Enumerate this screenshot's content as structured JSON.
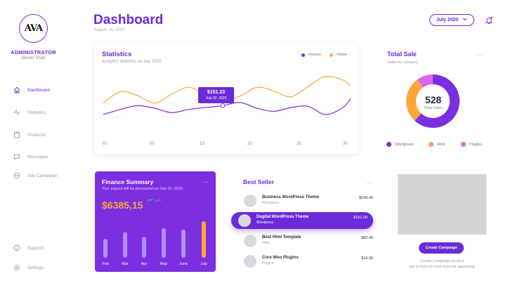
{
  "sidebar": {
    "logo": "AVA",
    "role": "ADMINISTRATOR",
    "shop": "Master Shop",
    "items": [
      {
        "label": "Dashboard",
        "icon": "home-icon",
        "active": true
      },
      {
        "label": "Statistics",
        "icon": "pulse-icon",
        "active": false
      },
      {
        "label": "Products",
        "icon": "box-icon",
        "active": false
      },
      {
        "label": "Messages",
        "icon": "chat-icon",
        "active": false
      },
      {
        "label": "Ads Campaign",
        "icon": "megaphone-icon",
        "active": false
      }
    ],
    "bottom_items": [
      {
        "label": "Support",
        "icon": "info-icon"
      },
      {
        "label": "Settings",
        "icon": "gear-icon"
      }
    ]
  },
  "header": {
    "title": "Dashboard",
    "date": "August 15, 2020",
    "month_selector": "July 2020"
  },
  "statistics": {
    "title": "Statistics",
    "subtitle": "Analytics statistics on July 2020",
    "legend": [
      {
        "label": "Income",
        "color": "#7b2fe0"
      },
      {
        "label": "Views",
        "color": "#ffa53a"
      }
    ],
    "tooltip": {
      "value": "$151.23",
      "date": "July 02, 2020"
    }
  },
  "total_sale": {
    "title": "Total Sale",
    "subtitle": "Sales by category",
    "more": "...",
    "total": "528",
    "total_label": "Total Sales",
    "chart_data": {
      "type": "pie",
      "title": "Total Sale",
      "subtitle": "Sales by category",
      "categories": [
        "Wordpress",
        "Html",
        "Plugins"
      ],
      "values": [
        62,
        28,
        10
      ],
      "colors": [
        "#7b2fe0",
        "#ffa53a",
        "#d768ef"
      ]
    }
  },
  "finance": {
    "title": "Finance Summary",
    "subtitle": "Your payout will be processed on July 15, 2020",
    "amount": "$6385,15",
    "change": "10%",
    "more": "...",
    "chart_data": {
      "type": "bar",
      "categories": [
        "Feb",
        "Mar",
        "Apr",
        "May",
        "June",
        "July"
      ],
      "values": [
        28,
        38,
        31,
        44,
        42,
        54
      ],
      "highlight": "July",
      "colors": {
        "bar": "#b48cf7",
        "highlight": "#ffa53a"
      }
    }
  },
  "best_seller": {
    "title": "Best Seller",
    "more": "...",
    "items": [
      {
        "name": "Business WordPress Theme",
        "category": "Wordpress",
        "price": "$249.00"
      },
      {
        "name": "Degital WordPress Theme",
        "category": "Wordpress",
        "price": "$151.00"
      },
      {
        "name": "Best Html Template",
        "category": "Html",
        "price": "$82.00"
      },
      {
        "name": "Core Woo Plugins",
        "category": "Plugins",
        "price": "$16.00"
      }
    ]
  },
  "campaign": {
    "button": "Create Campaign",
    "line1": "Create Campaign product",
    "line2": "get in front of more eyes be appearing"
  },
  "chart_data": {
    "type": "line",
    "title": "Statistics",
    "subtitle": "Analytics statistics on July 2020",
    "x": [
      1,
      3,
      5,
      7,
      9,
      11,
      13,
      15,
      17,
      19,
      21,
      23,
      25,
      27,
      29,
      30
    ],
    "x_ticks": [
      "01",
      "05",
      "15",
      "20",
      "25",
      "30"
    ],
    "series": [
      {
        "name": "Income",
        "color": "#7b2fe0",
        "values": [
          30,
          38,
          44,
          40,
          33,
          38,
          41,
          44,
          49,
          40,
          35,
          41,
          43,
          30,
          40,
          55
        ]
      },
      {
        "name": "Views",
        "color": "#ffa53a",
        "values": [
          48,
          66,
          60,
          48,
          62,
          73,
          62,
          54,
          59,
          73,
          67,
          58,
          74,
          90,
          85,
          75
        ]
      }
    ],
    "ylim": [
      0,
      100
    ],
    "grid": true
  }
}
